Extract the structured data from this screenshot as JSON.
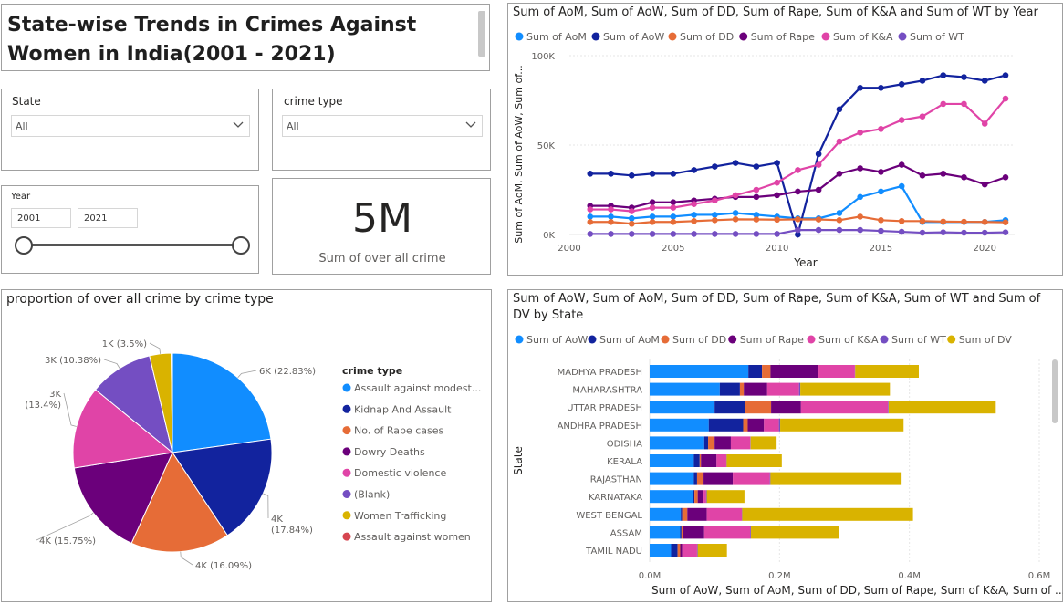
{
  "title": "State-wise Trends in Crimes Against Women in India(2001 - 2021)",
  "slicers": {
    "state": {
      "label": "State",
      "value": "All"
    },
    "crime_type": {
      "label": "crime type",
      "value": "All"
    },
    "year": {
      "label": "Year",
      "start": "2001",
      "end": "2021"
    }
  },
  "kpi": {
    "value": "5M",
    "label": "Sum of over all crime"
  },
  "colors": {
    "aow_light": "#118DFF",
    "aow_dark": "#12239E",
    "dd": "#E66C37",
    "rape": "#6B007B",
    "ka": "#E044A7",
    "wt": "#744EC2",
    "dv": "#D9B300",
    "red": "#D64550"
  },
  "icons": [
    "chevron-down-icon",
    "legend-dot-icon"
  ],
  "chart_data": [
    {
      "type": "line",
      "title": "Sum of AoM, Sum of AoW, Sum of DD, Sum of Rape, Sum of K&A and Sum of WT by Year",
      "xlabel": "Year",
      "ylabel": "Sum of AoM, Sum of AoW, Sum of...",
      "x": [
        2001,
        2002,
        2003,
        2004,
        2005,
        2006,
        2007,
        2008,
        2009,
        2010,
        2011,
        2012,
        2013,
        2014,
        2015,
        2016,
        2017,
        2018,
        2019,
        2020,
        2021
      ],
      "xticks": [
        "2000",
        "2005",
        "2010",
        "2015",
        "2020"
      ],
      "yticks": [
        "0K",
        "50K",
        "100K"
      ],
      "xlim": [
        2000,
        2021
      ],
      "ylim": [
        0,
        100000
      ],
      "legend_position": "top",
      "grid": "y",
      "series": [
        {
          "name": "Sum of AoM",
          "color": "#118DFF",
          "values": [
            10000,
            10000,
            9000,
            10000,
            10000,
            11000,
            11000,
            12000,
            11000,
            10000,
            9000,
            9000,
            12000,
            21000,
            24000,
            27000,
            7000,
            7000,
            7000,
            7000,
            8000
          ]
        },
        {
          "name": "Sum of AoW",
          "color": "#12239E",
          "values": [
            34000,
            34000,
            33000,
            34000,
            34000,
            36000,
            38000,
            40000,
            38000,
            40000,
            0,
            45000,
            70000,
            82000,
            82000,
            84000,
            86000,
            89000,
            88000,
            86000,
            89000
          ]
        },
        {
          "name": "Sum of DD",
          "color": "#E66C37",
          "values": [
            7000,
            7000,
            6000,
            7000,
            7000,
            7500,
            8000,
            8500,
            8400,
            8300,
            8500,
            8400,
            8000,
            10000,
            8000,
            7500,
            7500,
            7200,
            7100,
            7000,
            6800
          ]
        },
        {
          "name": "Sum of Rape",
          "color": "#6B007B",
          "values": [
            16000,
            16000,
            15000,
            18000,
            18000,
            19000,
            20000,
            21000,
            21000,
            22000,
            24000,
            25000,
            34000,
            37000,
            35000,
            39000,
            33000,
            34000,
            32000,
            28000,
            32000
          ]
        },
        {
          "name": "Sum of K&A",
          "color": "#E044A7",
          "values": [
            14000,
            14000,
            13000,
            15000,
            15000,
            17000,
            19000,
            22000,
            25000,
            29000,
            36000,
            39000,
            52000,
            57000,
            59000,
            64000,
            66000,
            73000,
            73000,
            62000,
            76000
          ]
        },
        {
          "name": "Sum of WT",
          "color": "#744EC2",
          "values": [
            300,
            300,
            300,
            300,
            300,
            300,
            300,
            300,
            300,
            300,
            2500,
            2500,
            2500,
            2500,
            2000,
            1500,
            1000,
            1200,
            1000,
            1000,
            1200
          ]
        }
      ]
    },
    {
      "type": "pie",
      "title": "proportion of over all crime by crime type",
      "legend_title": "crime type",
      "legend_position": "right",
      "slices": [
        {
          "name": "Assault against modest...",
          "value": 22.83,
          "label": "6K (22.83%)",
          "color": "#118DFF"
        },
        {
          "name": "Kidnap And Assault",
          "value": 17.84,
          "label": "4K\n(17.84%)",
          "color": "#12239E"
        },
        {
          "name": "No. of Rape cases",
          "value": 16.09,
          "label": "4K (16.09%)",
          "color": "#E66C37"
        },
        {
          "name": "Dowry Deaths",
          "value": 15.75,
          "label": "4K (15.75%)",
          "color": "#6B007B"
        },
        {
          "name": "Domestic violence",
          "value": 13.4,
          "label": "3K\n(13.4%)",
          "color": "#E044A7"
        },
        {
          "name": "(Blank)",
          "value": 10.38,
          "label": "3K (10.38%)",
          "color": "#744EC2"
        },
        {
          "name": "Women Trafficking",
          "value": 3.5,
          "label": "1K (3.5%)",
          "color": "#D9B300"
        },
        {
          "name": "Assault against women",
          "value": 0.21,
          "label": "",
          "color": "#D64550"
        }
      ]
    },
    {
      "type": "bar",
      "orientation": "horizontal",
      "stacked": true,
      "title": "Sum of AoW, Sum of AoM, Sum of DD, Sum of Rape, Sum of K&A, Sum of WT and Sum of DV by State",
      "xlabel": "Sum of AoW, Sum of AoM, Sum of DD, Sum of Rape, Sum of K&A, Sum of ...",
      "ylabel": "State",
      "xticks": [
        "0.0M",
        "0.2M",
        "0.4M",
        "0.6M"
      ],
      "xlim": [
        0,
        600000
      ],
      "legend_position": "top",
      "categories": [
        "MADHYA PRADESH",
        "MAHARASHTRA",
        "UTTAR PRADESH",
        "ANDHRA PRADESH",
        "ODISHA",
        "KERALA",
        "RAJASTHAN",
        "KARNATAKA",
        "WEST BENGAL",
        "ASSAM",
        "TAMIL NADU"
      ],
      "series": [
        {
          "name": "Sum of AoW",
          "color": "#118DFF",
          "values": [
            152000,
            108000,
            100000,
            91000,
            84000,
            68000,
            68000,
            66000,
            48000,
            47000,
            33000
          ]
        },
        {
          "name": "Sum of AoM",
          "color": "#12239E",
          "values": [
            21000,
            31000,
            47000,
            53000,
            6000,
            9000,
            5000,
            3000,
            2000,
            2000,
            10000
          ]
        },
        {
          "name": "Sum of DD",
          "color": "#E66C37",
          "values": [
            13000,
            6000,
            40000,
            7000,
            10000,
            2000,
            10000,
            5000,
            8000,
            2000,
            4000
          ]
        },
        {
          "name": "Sum of Rape",
          "color": "#6B007B",
          "values": [
            74000,
            36000,
            46000,
            25000,
            25000,
            24000,
            45000,
            9000,
            30000,
            33000,
            3000
          ]
        },
        {
          "name": "Sum of K&A",
          "color": "#E044A7",
          "values": [
            56000,
            49000,
            134000,
            23000,
            30000,
            15000,
            57000,
            4000,
            54000,
            71000,
            23000
          ]
        },
        {
          "name": "Sum of WT",
          "color": "#744EC2",
          "values": [
            500,
            2000,
            1000,
            2000,
            500,
            500,
            1000,
            1000,
            500,
            1000,
            1000
          ]
        },
        {
          "name": "Sum of DV",
          "color": "#D9B300",
          "values": [
            98000,
            138000,
            165000,
            190000,
            40000,
            85000,
            202000,
            58000,
            263000,
            136000,
            45000
          ]
        }
      ]
    }
  ]
}
